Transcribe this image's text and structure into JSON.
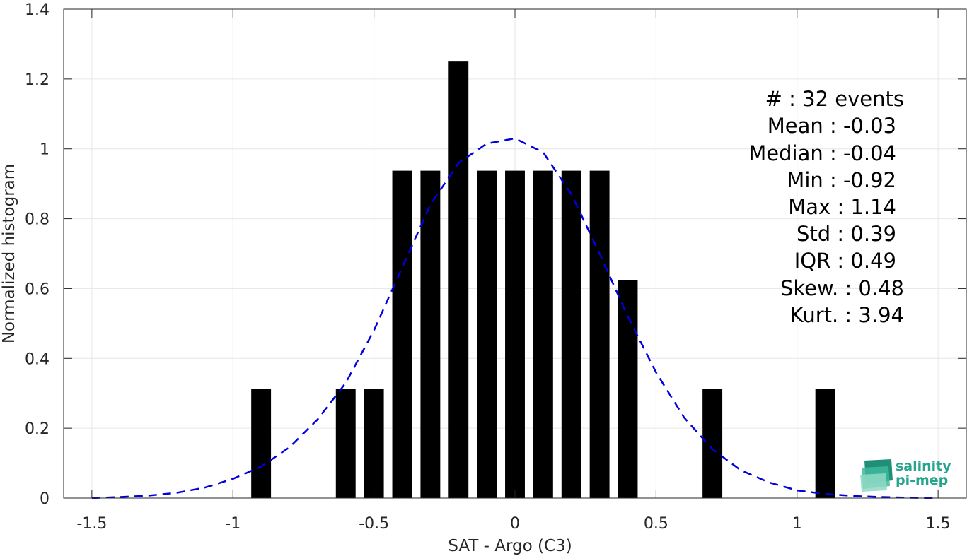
{
  "chart_data": {
    "type": "bar",
    "xlabel": "SAT - Argo (C3)",
    "ylabel": "Normalized histogram",
    "xlim": [
      -1.6,
      1.6
    ],
    "ylim": [
      0,
      1.4
    ],
    "x_ticks": [
      -1.5,
      -1,
      -0.5,
      0,
      0.5,
      1,
      1.5
    ],
    "x_tick_labels": [
      "-1.5",
      "-1",
      "-0.5",
      "0",
      "0.5",
      "1",
      "1.5"
    ],
    "y_ticks": [
      0,
      0.2,
      0.4,
      0.6,
      0.8,
      1,
      1.2,
      1.4
    ],
    "y_tick_labels": [
      "0",
      "0.2",
      "0.4",
      "0.6",
      "0.8",
      "1",
      "1.2",
      "1.4"
    ],
    "grid": true,
    "bar_width": 0.07,
    "bars": [
      {
        "x": -0.9,
        "value": 0.3125
      },
      {
        "x": -0.6,
        "value": 0.3125
      },
      {
        "x": -0.5,
        "value": 0.3125
      },
      {
        "x": -0.4,
        "value": 0.9375
      },
      {
        "x": -0.3,
        "value": 0.9375
      },
      {
        "x": -0.2,
        "value": 1.25
      },
      {
        "x": -0.1,
        "value": 0.9375
      },
      {
        "x": 0.0,
        "value": 0.9375
      },
      {
        "x": 0.1,
        "value": 0.9375
      },
      {
        "x": 0.2,
        "value": 0.9375
      },
      {
        "x": 0.3,
        "value": 0.9375
      },
      {
        "x": 0.4,
        "value": 0.625
      },
      {
        "x": 0.7,
        "value": 0.3125
      },
      {
        "x": 1.1,
        "value": 0.3125
      }
    ],
    "fit_curve": {
      "style": "dashed",
      "color": "#0000e0",
      "x": [
        -1.5,
        -1.4,
        -1.3,
        -1.2,
        -1.1,
        -1.0,
        -0.9,
        -0.8,
        -0.7,
        -0.6,
        -0.5,
        -0.4,
        -0.3,
        -0.2,
        -0.1,
        0.0,
        0.1,
        0.2,
        0.3,
        0.4,
        0.5,
        0.6,
        0.7,
        0.8,
        0.9,
        1.0,
        1.1,
        1.2,
        1.3,
        1.4,
        1.5
      ],
      "y": [
        0.0,
        0.003,
        0.007,
        0.015,
        0.03,
        0.055,
        0.09,
        0.145,
        0.225,
        0.33,
        0.48,
        0.66,
        0.84,
        0.96,
        1.015,
        1.03,
        0.99,
        0.87,
        0.7,
        0.52,
        0.36,
        0.23,
        0.14,
        0.08,
        0.045,
        0.022,
        0.012,
        0.006,
        0.003,
        0.001,
        0.0
      ]
    },
    "bar_color": "#000000"
  },
  "stats": [
    "#  : 32 events",
    "Mean : -0.03",
    "Median : -0.04",
    "Min : -0.92",
    "Max : 1.14",
    "Std : 0.39",
    "IQR : 0.49",
    "Skew. : 0.48",
    "Kurt. : 3.94"
  ],
  "logo": {
    "line1": "salinity",
    "line2": "pi-mep",
    "color": "#27a58c"
  }
}
